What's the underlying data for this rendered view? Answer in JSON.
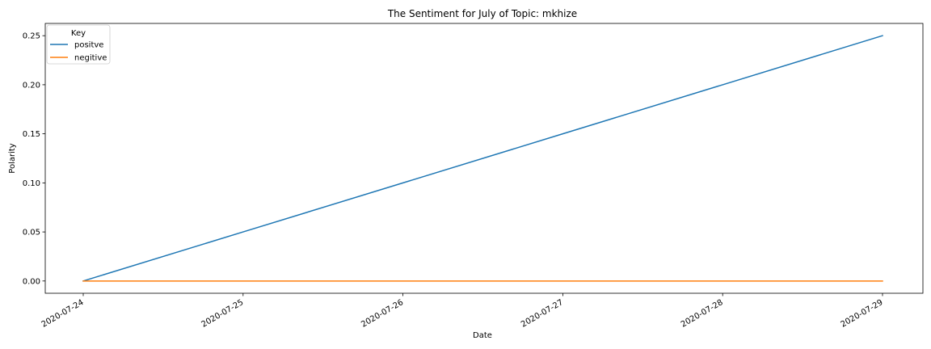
{
  "chart_data": {
    "type": "line",
    "title": "The Sentiment for July of Topic: mkhize",
    "xlabel": "Date",
    "ylabel": "Polarity",
    "x": [
      "2020-07-24",
      "2020-07-25",
      "2020-07-26",
      "2020-07-27",
      "2020-07-28",
      "2020-07-29"
    ],
    "series": [
      {
        "name": "positve",
        "color": "#1f77b4",
        "values": [
          0.0,
          0.05,
          0.1,
          0.15,
          0.2,
          0.25
        ]
      },
      {
        "name": "negitive",
        "color": "#ff7f0e",
        "values": [
          0.0,
          0.0,
          0.0,
          0.0,
          0.0,
          0.0
        ]
      }
    ],
    "ylim": [
      -0.0125,
      0.2625
    ],
    "yticks": [
      0.0,
      0.05,
      0.1,
      0.15,
      0.2,
      0.25
    ],
    "ytick_labels": [
      "0.00",
      "0.05",
      "0.10",
      "0.15",
      "0.20",
      "0.25"
    ],
    "xtick_labels": [
      "2020-07-24",
      "2020-07-25",
      "2020-07-26",
      "2020-07-27",
      "2020-07-28",
      "2020-07-29"
    ],
    "grid": false,
    "legend": {
      "title": "Key",
      "position": "top-left"
    }
  }
}
